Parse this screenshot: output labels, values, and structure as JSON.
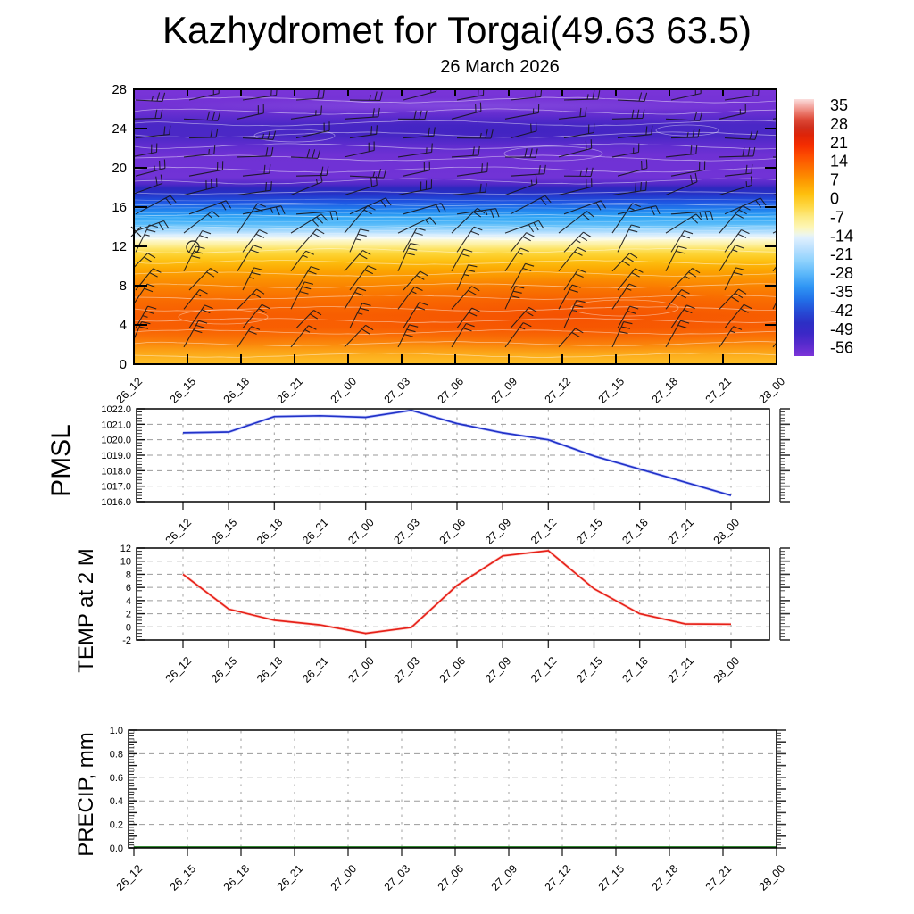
{
  "title": "Kazhydromet for Torgai(49.63 63.5)",
  "subtitle": "26 March 2026",
  "time_labels": [
    "26_12",
    "26_15",
    "26_18",
    "26_21",
    "27_00",
    "27_03",
    "27_06",
    "27_09",
    "27_12",
    "27_15",
    "27_18",
    "27_21",
    "28_00"
  ],
  "colors": {
    "pmsl_line": "#2232c8",
    "temp_line": "#e62119",
    "precip_line": "#1b7a1b",
    "grid_dash": "#9a9a9a"
  },
  "cross_section": {
    "y_tick_labels": [
      "28",
      "24",
      "20",
      "16",
      "12",
      "8",
      "4",
      "0"
    ],
    "y_range": [
      0,
      28
    ]
  },
  "colorbar": {
    "tick_labels": [
      "35",
      "28",
      "21",
      "14",
      "7",
      "0",
      "-7",
      "-14",
      "-21",
      "-28",
      "-35",
      "-42",
      "-49",
      "-56"
    ]
  },
  "chart_data": [
    {
      "type": "heatmap",
      "name": "upper-air cross-section with wind barbs",
      "x": [
        "26_12",
        "26_15",
        "26_18",
        "26_21",
        "27_00",
        "27_03",
        "27_06",
        "27_09",
        "27_12",
        "27_15",
        "27_18",
        "27_21",
        "28_00"
      ],
      "ylim": [
        0,
        28
      ],
      "yticks": [
        28,
        24,
        20,
        16,
        12,
        8,
        4,
        0
      ],
      "colorbar_ticks": [
        35,
        28,
        21,
        14,
        7,
        0,
        -7,
        -14,
        -21,
        -28,
        -35,
        -42,
        -49,
        -56
      ],
      "legend_position": "right",
      "approx_values_by_height_from_colorbar": [
        {
          "h": 0,
          "v": 4
        },
        {
          "h": 2,
          "v": 10
        },
        {
          "h": 5,
          "v": 17
        },
        {
          "h": 8,
          "v": 14
        },
        {
          "h": 10,
          "v": 8
        },
        {
          "h": 11.5,
          "v": 2
        },
        {
          "h": 12.5,
          "v": -6
        },
        {
          "h": 13.5,
          "v": -16
        },
        {
          "h": 15,
          "v": -26
        },
        {
          "h": 16.5,
          "v": -38
        },
        {
          "h": 17.8,
          "v": -48
        },
        {
          "h": 20,
          "v": -58
        },
        {
          "h": 24,
          "v": -54
        },
        {
          "h": 28,
          "v": -60
        }
      ]
    },
    {
      "type": "line",
      "name": "PMSL",
      "x": [
        "26_12",
        "26_15",
        "26_18",
        "26_21",
        "27_00",
        "27_03",
        "27_06",
        "27_09",
        "27_12",
        "27_15",
        "27_18",
        "27_21",
        "28_00"
      ],
      "values": [
        1020.45,
        1020.5,
        1021.5,
        1021.55,
        1021.45,
        1021.9,
        1021.05,
        1020.45,
        1020.0,
        1018.95,
        1018.1,
        1017.25,
        1016.4
      ],
      "ylim": [
        1016,
        1022
      ],
      "y_tick_labels": [
        "1022.0",
        "1021.0",
        "1020.0",
        "1019.0",
        "1018.0",
        "1017.0",
        "1016.0"
      ],
      "grid": true,
      "color": "#2232c8"
    },
    {
      "type": "line",
      "name": "TEMP at 2 M",
      "x": [
        "26_12",
        "26_15",
        "26_18",
        "26_21",
        "27_00",
        "27_03",
        "27_06",
        "27_09",
        "27_12",
        "27_15",
        "27_18",
        "27_21",
        "28_00"
      ],
      "values": [
        8.0,
        2.7,
        1.0,
        0.3,
        -1.0,
        -0.1,
        6.3,
        10.8,
        11.6,
        5.8,
        2.0,
        0.45,
        0.4
      ],
      "ylim": [
        -2,
        12
      ],
      "y_tick_labels": [
        "12",
        "10",
        "8",
        "6",
        "4",
        "2",
        "0",
        "-2"
      ],
      "grid": true,
      "color": "#e62119"
    },
    {
      "type": "line",
      "name": "PRECIP, mm",
      "x": [
        "26_12",
        "26_15",
        "26_18",
        "26_21",
        "27_00",
        "27_03",
        "27_06",
        "27_09",
        "27_12",
        "27_15",
        "27_18",
        "27_21",
        "28_00"
      ],
      "values": [
        0,
        0,
        0,
        0,
        0,
        0,
        0,
        0,
        0,
        0,
        0,
        0,
        0
      ],
      "ylim": [
        0,
        1
      ],
      "y_tick_labels": [
        "1.0",
        "0.8",
        "0.6",
        "0.4",
        "0.2",
        "0.0"
      ],
      "grid": true,
      "color": "#1b7a1b"
    }
  ]
}
